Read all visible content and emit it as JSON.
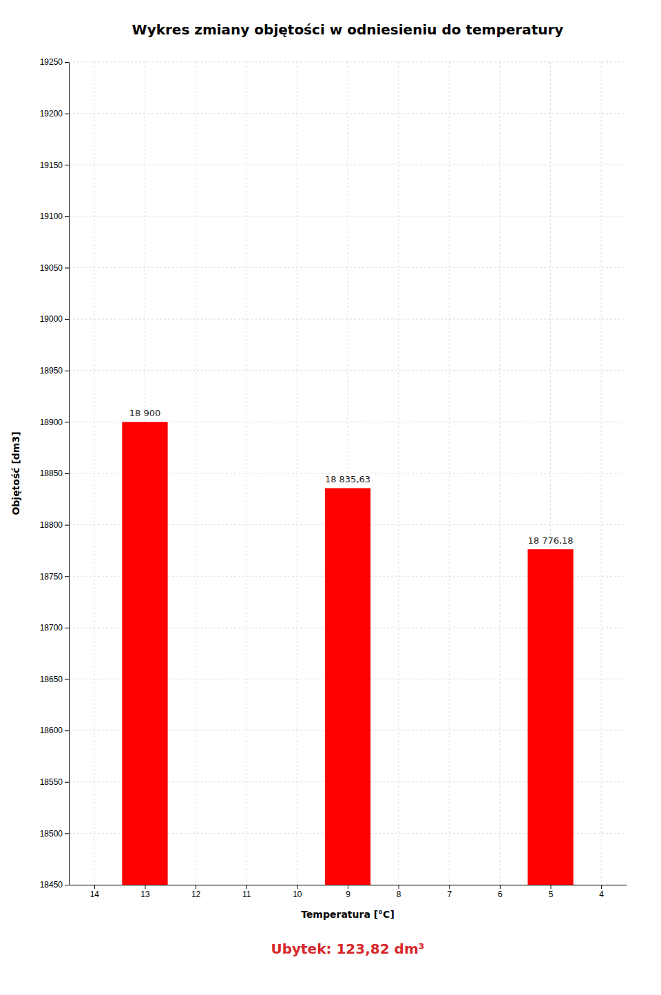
{
  "chart_data": {
    "type": "bar",
    "title": "Wykres zmiany objętości w odniesieniu do temperatury",
    "x": [
      13,
      9,
      5
    ],
    "values": [
      18900,
      18835.63,
      18776.18
    ],
    "value_labels": [
      "18 900",
      "18 835,63",
      "18 776,18"
    ],
    "data_labels": true,
    "color": "#ff0000",
    "xlabel": "Temperatura [°C]",
    "ylabel": "Objętość [dm3]",
    "xlim": [
      14.5,
      3.5
    ],
    "xticks": [
      14,
      13,
      12,
      11,
      10,
      9,
      8,
      7,
      6,
      5,
      4
    ],
    "ylim": [
      18450,
      19250
    ],
    "yticks": [
      18450,
      18500,
      18550,
      18600,
      18650,
      18700,
      18750,
      18800,
      18850,
      18900,
      18950,
      19000,
      19050,
      19100,
      19150,
      19200,
      19250
    ],
    "grid": true,
    "annotations": [
      "Ubytek: 123,82 dm³"
    ]
  }
}
